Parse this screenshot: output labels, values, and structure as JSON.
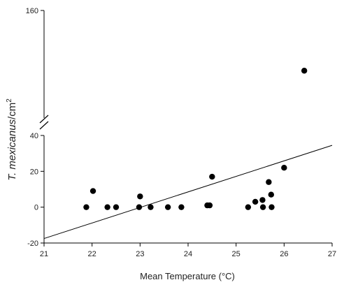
{
  "chart_data": {
    "type": "scatter",
    "title": "",
    "xlabel": "Mean Temperature (°C)",
    "ylabel": {
      "italic": "T. mexicanus",
      "rest": "/cm",
      "superscript": "2"
    },
    "xlim": [
      21,
      27
    ],
    "ylim_lower": [
      -20,
      40
    ],
    "ylim_upper": [
      110,
      160
    ],
    "y_axis_break": true,
    "x_ticks": [
      "21",
      "22",
      "23",
      "24",
      "25",
      "26",
      "27"
    ],
    "y_ticks_lower": [
      "-20",
      "0",
      "20",
      "40"
    ],
    "y_ticks_upper": [
      "160"
    ],
    "grid": false,
    "points": [
      {
        "x": 21.88,
        "y": 0
      },
      {
        "x": 22.02,
        "y": 9
      },
      {
        "x": 22.32,
        "y": 0
      },
      {
        "x": 22.5,
        "y": 0
      },
      {
        "x": 22.98,
        "y": 0
      },
      {
        "x": 23.0,
        "y": 6
      },
      {
        "x": 23.22,
        "y": 0
      },
      {
        "x": 23.58,
        "y": 0
      },
      {
        "x": 23.86,
        "y": 0
      },
      {
        "x": 24.4,
        "y": 1
      },
      {
        "x": 24.45,
        "y": 1
      },
      {
        "x": 24.5,
        "y": 17
      },
      {
        "x": 25.25,
        "y": 0
      },
      {
        "x": 25.4,
        "y": 3
      },
      {
        "x": 25.55,
        "y": 4
      },
      {
        "x": 25.56,
        "y": 0
      },
      {
        "x": 25.68,
        "y": 14
      },
      {
        "x": 25.73,
        "y": 7
      },
      {
        "x": 25.74,
        "y": 0
      },
      {
        "x": 26.0,
        "y": 22
      },
      {
        "x": 26.42,
        "y": 132
      }
    ],
    "trendline": {
      "x": [
        21,
        27
      ],
      "y": [
        -17.5,
        34.5
      ]
    },
    "marker_color": "#000000",
    "line_color": "#000000"
  }
}
